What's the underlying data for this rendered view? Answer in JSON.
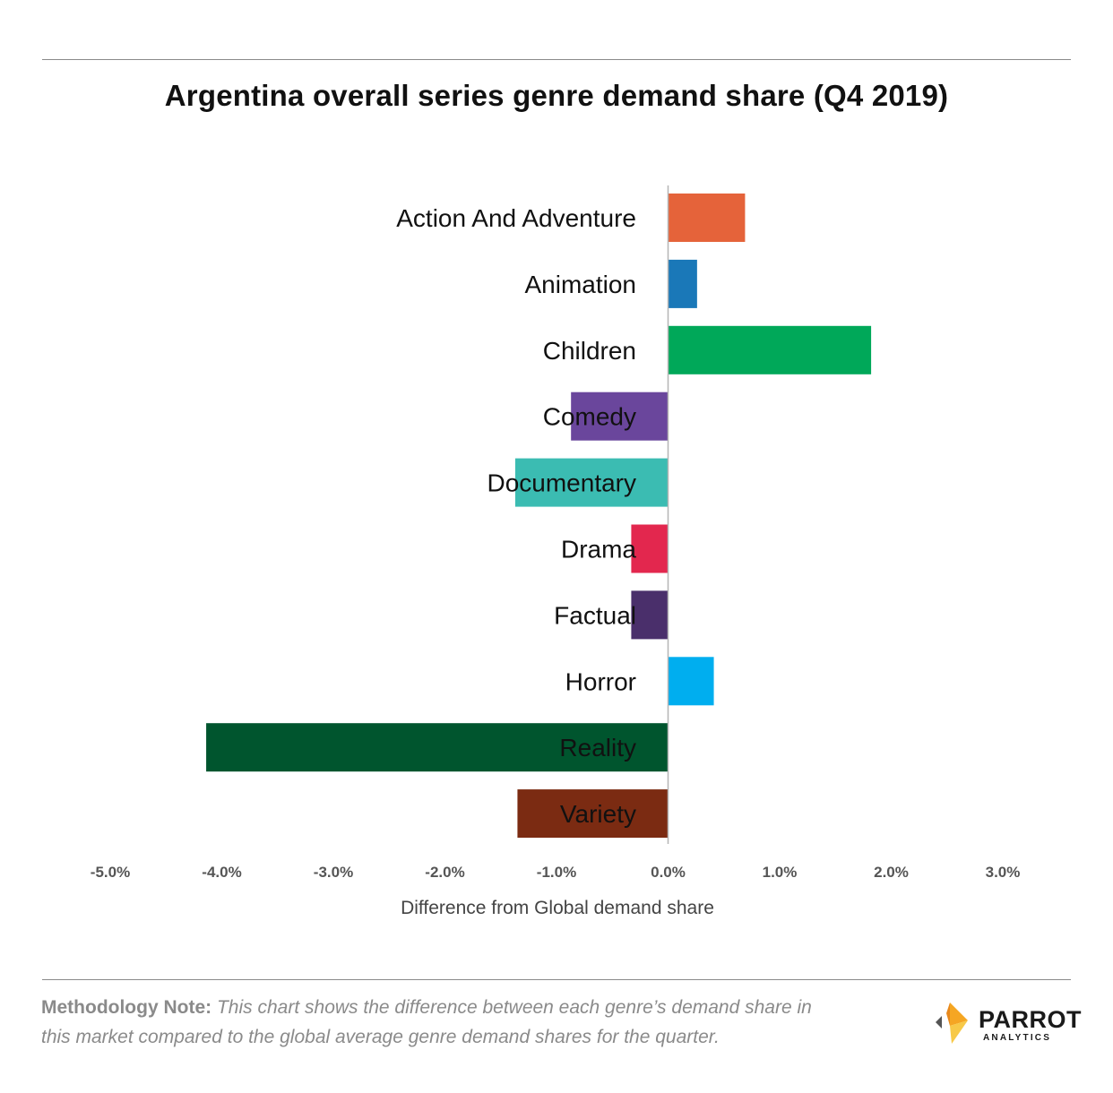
{
  "chart_data": {
    "type": "bar",
    "orientation": "horizontal",
    "title": "Argentina overall series genre demand share (Q4 2019)",
    "xlabel": "Difference from Global demand share",
    "ylabel": "",
    "xlim": [
      -5.0,
      3.0
    ],
    "x_ticks": [
      "-5.0%",
      "-4.0%",
      "-3.0%",
      "-2.0%",
      "-1.0%",
      "0.0%",
      "1.0%",
      "2.0%",
      "3.0%"
    ],
    "x_tick_values": [
      -5.0,
      -4.0,
      -3.0,
      -2.0,
      -1.0,
      0.0,
      1.0,
      2.0,
      3.0
    ],
    "unit": "%",
    "grid": false,
    "categories": [
      "Action And Adventure",
      "Animation",
      "Children",
      "Comedy",
      "Documentary",
      "Drama",
      "Factual",
      "Horror",
      "Reality",
      "Variety"
    ],
    "values": [
      0.69,
      0.26,
      1.82,
      -0.87,
      -1.37,
      -0.33,
      -0.33,
      0.41,
      -4.14,
      -1.35
    ],
    "colors": [
      "#e5633a",
      "#1a78b8",
      "#00a859",
      "#6a469c",
      "#3bbcb2",
      "#e3274e",
      "#4a2f6b",
      "#00aeef",
      "#00552e",
      "#7b2b12"
    ]
  },
  "footer": {
    "method_label": "Methodology Note:",
    "method_text": "This chart shows the difference between each genre’s demand share in this market compared to the global average genre demand shares for the quarter."
  },
  "logo": {
    "word": "PARROT",
    "sub": "ANALYTICS",
    "colors": [
      "#f5a623",
      "#f7c948",
      "#e8891c"
    ]
  }
}
